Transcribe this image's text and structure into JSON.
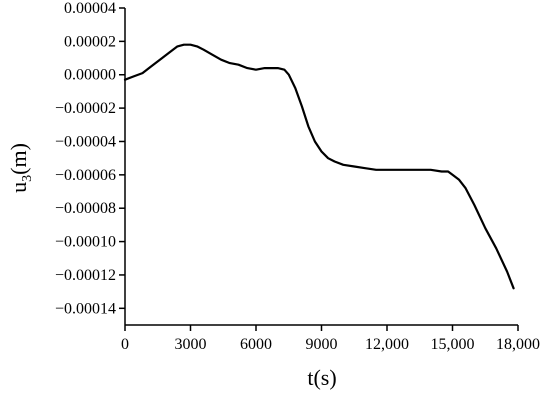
{
  "chart_data": {
    "type": "line",
    "title": "",
    "xlabel": "t(s)",
    "ylabel_main": "u",
    "ylabel_sub": "3",
    "ylabel_unit": "(m)",
    "xlim": [
      0,
      18000
    ],
    "ylim": [
      -0.00015,
      4e-05
    ],
    "grid": false,
    "x_ticks": [
      0,
      3000,
      6000,
      9000,
      12000,
      15000,
      18000
    ],
    "x_tick_labels": [
      "0",
      "3000",
      "6000",
      "9000",
      "12,000",
      "15,000",
      "18,000"
    ],
    "y_ticks": [
      4e-05,
      2e-05,
      0,
      -2e-05,
      -4e-05,
      -6e-05,
      -8e-05,
      -0.0001,
      -0.00012,
      -0.00014
    ],
    "y_tick_labels": [
      "0.00004",
      "0.00002",
      "0.00000",
      "−0.00002",
      "−0.00004",
      "−0.00006",
      "−0.00008",
      "−0.00010",
      "−0.00012",
      "−0.00014"
    ],
    "series": [
      {
        "color": "#000000",
        "x": [
          0,
          400,
          800,
          1200,
          1600,
          2000,
          2400,
          2700,
          3000,
          3300,
          3600,
          4000,
          4400,
          4800,
          5200,
          5600,
          6000,
          6400,
          6700,
          7000,
          7300,
          7500,
          7800,
          8100,
          8400,
          8700,
          9000,
          9300,
          9600,
          10000,
          10500,
          11000,
          11500,
          12000,
          12500,
          13000,
          13500,
          14000,
          14500,
          14800,
          15000,
          15300,
          15600,
          16000,
          16500,
          17000,
          17500,
          17800
        ],
        "y": [
          -3e-06,
          -1e-06,
          1e-06,
          5e-06,
          9e-06,
          1.3e-05,
          1.7e-05,
          1.8e-05,
          1.8e-05,
          1.7e-05,
          1.5e-05,
          1.2e-05,
          9e-06,
          7e-06,
          6e-06,
          4e-06,
          3e-06,
          4e-06,
          4e-06,
          4e-06,
          3e-06,
          0.0,
          -8e-06,
          -1.9e-05,
          -3.1e-05,
          -4e-05,
          -4.6e-05,
          -5e-05,
          -5.2e-05,
          -5.4e-05,
          -5.5e-05,
          -5.6e-05,
          -5.7e-05,
          -5.7e-05,
          -5.7e-05,
          -5.7e-05,
          -5.7e-05,
          -5.7e-05,
          -5.8e-05,
          -5.8e-05,
          -6e-05,
          -6.3e-05,
          -6.8e-05,
          -7.8e-05,
          -9.2e-05,
          -0.000104,
          -0.000118,
          -0.000128
        ]
      }
    ]
  }
}
